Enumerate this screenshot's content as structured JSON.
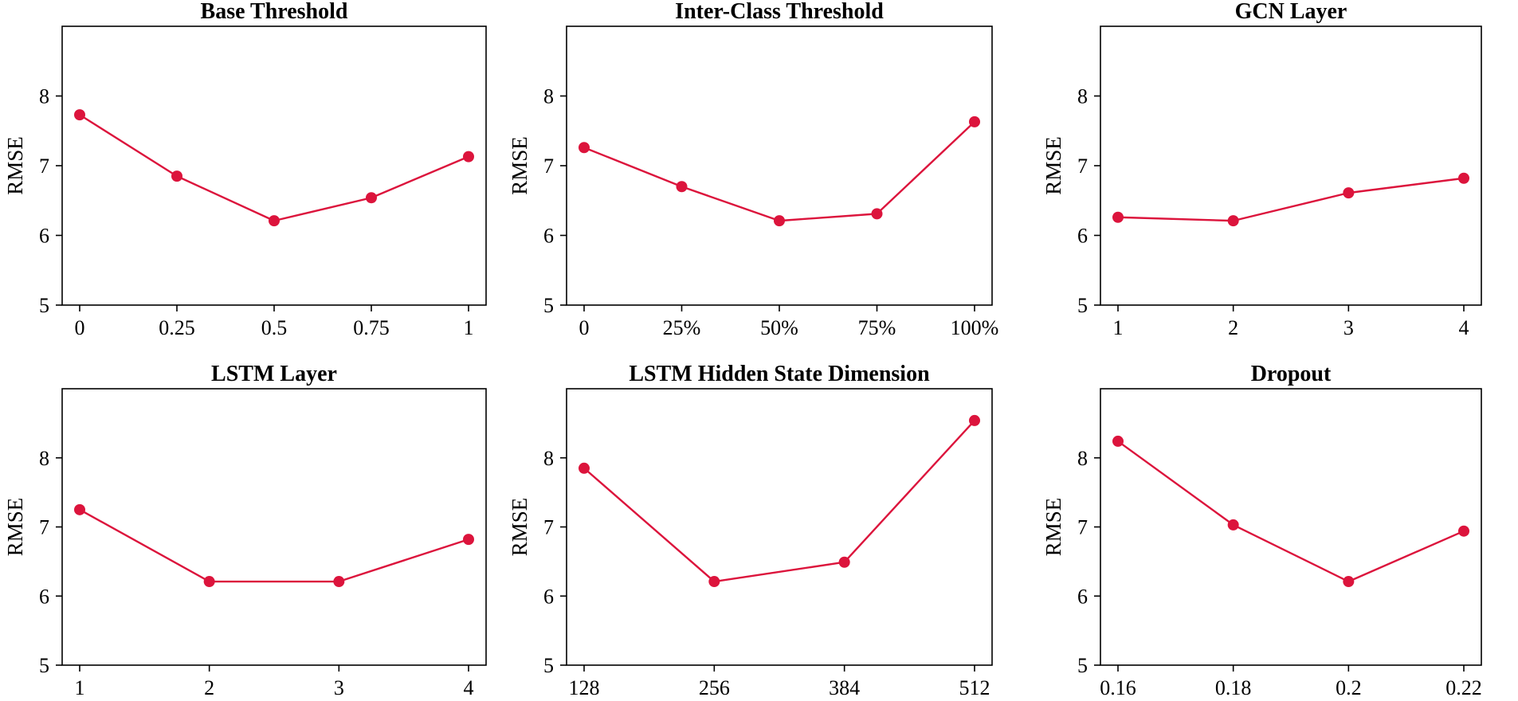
{
  "colors": {
    "series": "#DC143C",
    "axes": "#000000",
    "background": "#ffffff"
  },
  "chart_data": [
    {
      "type": "line",
      "title": "Base Threshold",
      "xlabel": "",
      "ylabel": "RMSE",
      "categories": [
        "0",
        "0.25",
        "0.5",
        "0.75",
        "1"
      ],
      "values": [
        7.73,
        6.85,
        6.21,
        6.54,
        7.13
      ],
      "ylim": [
        5,
        9
      ],
      "yticks": [
        5,
        6,
        7,
        8
      ],
      "ytick_labels": [
        "5",
        "6",
        "7",
        "8"
      ],
      "grid": false,
      "legend": "none"
    },
    {
      "type": "line",
      "title": "Inter-Class Threshold",
      "xlabel": "",
      "ylabel": "RMSE",
      "categories": [
        "0",
        "25%",
        "50%",
        "75%",
        "100%"
      ],
      "values": [
        7.26,
        6.7,
        6.21,
        6.31,
        7.63
      ],
      "ylim": [
        5,
        9
      ],
      "yticks": [
        5,
        6,
        7,
        8
      ],
      "ytick_labels": [
        "5",
        "6",
        "7",
        "8"
      ],
      "grid": false,
      "legend": "none"
    },
    {
      "type": "line",
      "title": "GCN Layer",
      "xlabel": "",
      "ylabel": "RMSE",
      "categories": [
        "1",
        "2",
        "3",
        "4"
      ],
      "values": [
        6.26,
        6.21,
        6.61,
        6.82
      ],
      "ylim": [
        5,
        9
      ],
      "yticks": [
        5,
        6,
        7,
        8
      ],
      "ytick_labels": [
        "5",
        "6",
        "7",
        "8"
      ],
      "grid": false,
      "legend": "none"
    },
    {
      "type": "line",
      "title": "LSTM Layer",
      "xlabel": "",
      "ylabel": "RMSE",
      "categories": [
        "1",
        "2",
        "3",
        "4"
      ],
      "values": [
        7.25,
        6.21,
        6.21,
        6.82
      ],
      "ylim": [
        5,
        9
      ],
      "yticks": [
        5,
        6,
        7,
        8
      ],
      "ytick_labels": [
        "5",
        "6",
        "7",
        "8"
      ],
      "grid": false,
      "legend": "none"
    },
    {
      "type": "line",
      "title": "LSTM Hidden State Dimension",
      "xlabel": "",
      "ylabel": "RMSE",
      "categories": [
        "128",
        "256",
        "384",
        "512"
      ],
      "values": [
        7.85,
        6.21,
        6.49,
        8.54
      ],
      "ylim": [
        5,
        9
      ],
      "yticks": [
        5,
        6,
        7,
        8
      ],
      "ytick_labels": [
        "5",
        "6",
        "7",
        "8"
      ],
      "grid": false,
      "legend": "none"
    },
    {
      "type": "line",
      "title": "Dropout",
      "xlabel": "",
      "ylabel": "RMSE",
      "categories": [
        "0.16",
        "0.18",
        "0.2",
        "0.22"
      ],
      "values": [
        8.24,
        7.03,
        6.21,
        6.94
      ],
      "ylim": [
        5,
        9
      ],
      "yticks": [
        5,
        6,
        7,
        8
      ],
      "ytick_labels": [
        "5",
        "6",
        "7",
        "8"
      ],
      "grid": false,
      "legend": "none"
    }
  ]
}
